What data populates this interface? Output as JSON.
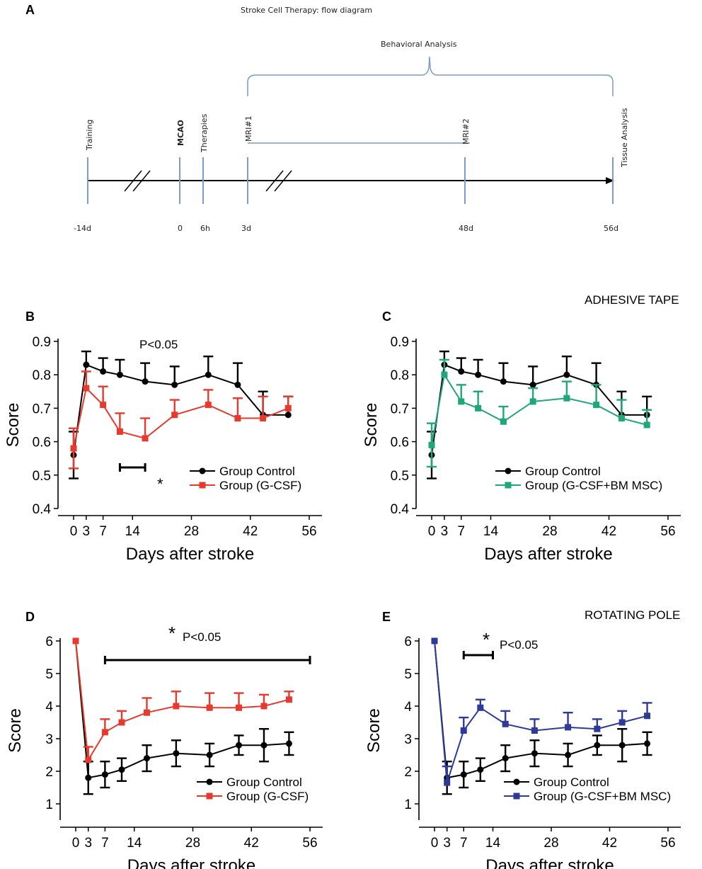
{
  "colors": {
    "control": "#000000",
    "gcsf": "#e63a2e",
    "gcsf_bm": "#1fa67a",
    "gcsf_bm_blue": "#2d3a98",
    "timeline_blue": "#7a9cc6"
  },
  "panel_a": {
    "letter": "A",
    "title": "Stroke Cell Therapy: flow diagram",
    "behavioral": "Behavioral Analysis",
    "events": [
      {
        "label": "Training",
        "time": "-14d",
        "bold": false
      },
      {
        "label": "MCAO",
        "time": "0",
        "bold": true
      },
      {
        "label": "Therapies",
        "time": "6h",
        "bold": false
      },
      {
        "label": "MRI#1",
        "time": "3d",
        "bold": false
      },
      {
        "label": "MRI#2",
        "time": "48d",
        "bold": false
      },
      {
        "label": "Tissue Analysis",
        "time": "56d",
        "bold": false
      }
    ]
  },
  "section_labels": {
    "adhesive": "ADHESIVE TAPE",
    "rotating": "ROTATING POLE"
  },
  "chart_data": [
    {
      "panel": "B",
      "type": "line",
      "xlabel": "Days after stroke",
      "ylabel": "Score",
      "x": [
        0,
        3,
        7,
        11,
        17,
        24,
        32,
        39,
        45,
        51
      ],
      "xticks": [
        0,
        3,
        7,
        14,
        28,
        42,
        56
      ],
      "xtick_labels": [
        "0",
        "3",
        "7",
        "14",
        "28",
        "42",
        "56"
      ],
      "ylim": [
        0.4,
        0.9
      ],
      "yticks": [
        0.4,
        0.5,
        0.6,
        0.7,
        0.8,
        0.9
      ],
      "ytick_labels": [
        "0.4",
        "0.5",
        "0.6",
        "0.7",
        "0.8",
        "0.9"
      ],
      "series": [
        {
          "name": "Group Control",
          "color_key": "control",
          "marker": "circle",
          "values": [
            0.56,
            0.83,
            0.81,
            0.8,
            0.78,
            0.77,
            0.8,
            0.77,
            0.68,
            0.68
          ],
          "errors": [
            0.07,
            0.04,
            0.04,
            0.045,
            0.055,
            0.055,
            0.055,
            0.065,
            0.07,
            0.055
          ]
        },
        {
          "name": "Group (G-CSF)",
          "color_key": "gcsf",
          "marker": "square",
          "values": [
            0.58,
            0.76,
            0.71,
            0.63,
            0.61,
            0.68,
            0.71,
            0.67,
            0.67,
            0.7
          ],
          "errors": [
            0.06,
            0.05,
            0.055,
            0.055,
            0.06,
            0.045,
            0.045,
            0.06,
            0.065,
            0.035
          ]
        }
      ],
      "annotations": [
        {
          "text": "P<0.05"
        },
        {
          "text": "*"
        }
      ],
      "sig_bar_x": [
        11,
        17
      ]
    },
    {
      "panel": "C",
      "type": "line",
      "xlabel": "Days after stroke",
      "ylabel": "Score",
      "x": [
        0,
        3,
        7,
        11,
        17,
        24,
        32,
        39,
        45,
        51
      ],
      "xticks": [
        0,
        3,
        7,
        14,
        28,
        42,
        56
      ],
      "xtick_labels": [
        "0",
        "3",
        "7",
        "14",
        "28",
        "42",
        "56"
      ],
      "ylim": [
        0.4,
        0.9
      ],
      "yticks": [
        0.4,
        0.5,
        0.6,
        0.7,
        0.8,
        0.9
      ],
      "ytick_labels": [
        "0.4",
        "0.5",
        "0.6",
        "0.7",
        "0.8",
        "0.9"
      ],
      "series": [
        {
          "name": "Group Control",
          "color_key": "control",
          "marker": "circle",
          "values": [
            0.56,
            0.83,
            0.81,
            0.8,
            0.78,
            0.77,
            0.8,
            0.77,
            0.68,
            0.68
          ],
          "errors": [
            0.07,
            0.04,
            0.04,
            0.045,
            0.055,
            0.055,
            0.055,
            0.065,
            0.07,
            0.055
          ]
        },
        {
          "name": "Group (G-CSF+BM MSC)",
          "color_key": "gcsf_bm",
          "marker": "square",
          "values": [
            0.59,
            0.8,
            0.72,
            0.7,
            0.66,
            0.72,
            0.73,
            0.71,
            0.67,
            0.65
          ],
          "errors": [
            0.065,
            0.045,
            0.05,
            0.05,
            0.045,
            0.04,
            0.05,
            0.06,
            0.055,
            0.045
          ]
        }
      ],
      "annotations": []
    },
    {
      "panel": "D",
      "type": "line",
      "xlabel": "Days after stroke",
      "ylabel": "Score",
      "x": [
        0,
        3,
        7,
        11,
        17,
        24,
        32,
        39,
        45,
        51
      ],
      "xticks": [
        0,
        3,
        7,
        14,
        28,
        42,
        56
      ],
      "xtick_labels": [
        "0",
        "3",
        "7",
        "14",
        "28",
        "42",
        "56"
      ],
      "ylim": [
        0.5,
        6
      ],
      "yticks": [
        1,
        2,
        3,
        4,
        5,
        6
      ],
      "ytick_labels": [
        "1",
        "2",
        "3",
        "4",
        "5",
        "6"
      ],
      "series": [
        {
          "name": "Group Control",
          "color_key": "control",
          "marker": "circle",
          "values": [
            6.0,
            1.8,
            1.9,
            2.05,
            2.4,
            2.55,
            2.5,
            2.8,
            2.8,
            2.85
          ],
          "errors": [
            0.0,
            0.5,
            0.4,
            0.35,
            0.4,
            0.4,
            0.35,
            0.3,
            0.5,
            0.35
          ]
        },
        {
          "name": "Group (G-CSF)",
          "color_key": "gcsf",
          "marker": "square",
          "values": [
            6.0,
            2.35,
            3.2,
            3.5,
            3.8,
            4.0,
            3.95,
            3.95,
            4.0,
            4.2
          ],
          "errors": [
            0.0,
            0.4,
            0.4,
            0.35,
            0.45,
            0.45,
            0.45,
            0.45,
            0.35,
            0.25
          ]
        }
      ],
      "annotations": [
        {
          "text": "P<0.05"
        },
        {
          "text": "*"
        }
      ],
      "sig_bar_x": [
        7,
        56
      ]
    },
    {
      "panel": "E",
      "type": "line",
      "xlabel": "Days after stroke",
      "ylabel": "Score",
      "x": [
        0,
        3,
        7,
        11,
        17,
        24,
        32,
        39,
        45,
        51
      ],
      "xticks": [
        0,
        3,
        7,
        14,
        28,
        42,
        56
      ],
      "xtick_labels": [
        "0",
        "3",
        "7",
        "14",
        "28",
        "42",
        "56"
      ],
      "ylim": [
        0.5,
        6
      ],
      "yticks": [
        1,
        2,
        3,
        4,
        5,
        6
      ],
      "ytick_labels": [
        "1",
        "2",
        "3",
        "4",
        "5",
        "6"
      ],
      "series": [
        {
          "name": "Group Control",
          "color_key": "control",
          "marker": "circle",
          "values": [
            6.0,
            1.8,
            1.9,
            2.05,
            2.4,
            2.55,
            2.5,
            2.8,
            2.8,
            2.85
          ],
          "errors": [
            0.0,
            0.5,
            0.4,
            0.35,
            0.4,
            0.4,
            0.35,
            0.3,
            0.5,
            0.35
          ]
        },
        {
          "name": "Group (G-CSF+BM MSC)",
          "color_key": "gcsf_bm_blue",
          "marker": "square",
          "values": [
            6.0,
            1.65,
            3.25,
            3.95,
            3.45,
            3.25,
            3.35,
            3.3,
            3.5,
            3.7
          ],
          "errors": [
            0.0,
            0.5,
            0.4,
            0.25,
            0.4,
            0.35,
            0.45,
            0.3,
            0.35,
            0.4
          ]
        }
      ],
      "annotations": [
        {
          "text": "P<0.05"
        },
        {
          "text": "*"
        }
      ],
      "sig_bar_x": [
        7,
        14
      ]
    }
  ]
}
